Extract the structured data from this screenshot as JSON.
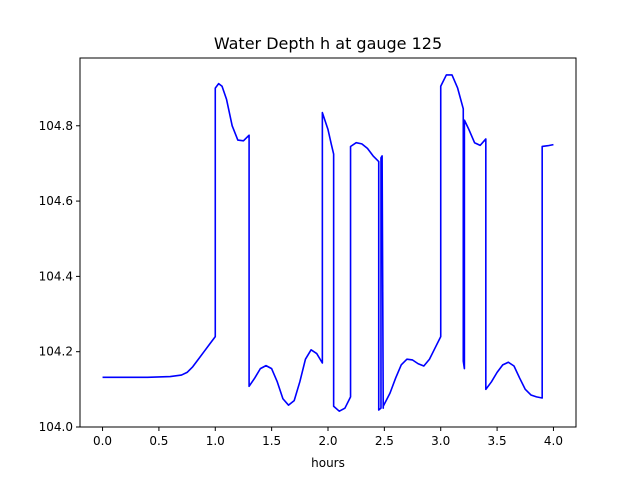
{
  "chart_data": {
    "type": "line",
    "title": "Water Depth h at gauge 125",
    "xlabel": "hours",
    "ylabel": "",
    "xlim": [
      -0.2,
      4.2
    ],
    "ylim": [
      104.0,
      104.98
    ],
    "xticks": [
      0.0,
      0.5,
      1.0,
      1.5,
      2.0,
      2.5,
      3.0,
      3.5,
      4.0
    ],
    "xtick_labels": [
      "0.0",
      "0.5",
      "1.0",
      "1.5",
      "2.0",
      "2.5",
      "3.0",
      "3.5",
      "4.0"
    ],
    "yticks": [
      104.0,
      104.2,
      104.4,
      104.6,
      104.8
    ],
    "ytick_labels": [
      "104.0",
      "104.2",
      "104.4",
      "104.6",
      "104.8"
    ],
    "grid": false,
    "series": [
      {
        "color": "#0000ff",
        "x": [
          0.0,
          0.2,
          0.4,
          0.6,
          0.7,
          0.75,
          0.8,
          0.85,
          0.9,
          0.95,
          1.0,
          1.0,
          1.03,
          1.06,
          1.1,
          1.15,
          1.2,
          1.25,
          1.3,
          1.3,
          1.35,
          1.4,
          1.45,
          1.5,
          1.55,
          1.6,
          1.65,
          1.7,
          1.75,
          1.8,
          1.85,
          1.9,
          1.95,
          1.95,
          2.0,
          2.03,
          2.05,
          2.05,
          2.1,
          2.15,
          2.2,
          2.2,
          2.25,
          2.3,
          2.35,
          2.4,
          2.45,
          2.45,
          2.47,
          2.47,
          2.48,
          2.49,
          2.49,
          2.55,
          2.6,
          2.65,
          2.7,
          2.75,
          2.8,
          2.85,
          2.9,
          2.95,
          3.0,
          3.0,
          3.05,
          3.1,
          3.15,
          3.2,
          3.2,
          3.21,
          3.21,
          3.25,
          3.3,
          3.35,
          3.4,
          3.4,
          3.45,
          3.5,
          3.55,
          3.6,
          3.65,
          3.7,
          3.75,
          3.8,
          3.85,
          3.9,
          3.9,
          3.95,
          4.0
        ],
        "y": [
          104.132,
          104.132,
          104.132,
          104.134,
          104.138,
          104.145,
          104.16,
          104.18,
          104.2,
          104.22,
          104.24,
          104.9,
          104.912,
          104.905,
          104.87,
          104.8,
          104.762,
          104.76,
          104.775,
          104.108,
          104.13,
          104.155,
          104.163,
          104.155,
          104.12,
          104.075,
          104.058,
          104.07,
          104.12,
          104.18,
          104.205,
          104.195,
          104.17,
          104.835,
          104.79,
          104.75,
          104.725,
          104.055,
          104.042,
          104.05,
          104.08,
          104.745,
          104.755,
          104.752,
          104.74,
          104.72,
          104.705,
          104.045,
          104.05,
          104.715,
          104.72,
          104.05,
          104.055,
          104.09,
          104.13,
          104.165,
          104.18,
          104.178,
          104.168,
          104.162,
          104.18,
          104.21,
          104.24,
          104.905,
          104.935,
          104.935,
          104.9,
          104.845,
          104.175,
          104.155,
          104.815,
          104.79,
          104.755,
          104.748,
          104.765,
          104.1,
          104.12,
          104.145,
          104.165,
          104.172,
          104.162,
          104.13,
          104.1,
          104.085,
          104.08,
          104.077,
          104.745,
          104.747,
          104.75
        ]
      }
    ]
  }
}
